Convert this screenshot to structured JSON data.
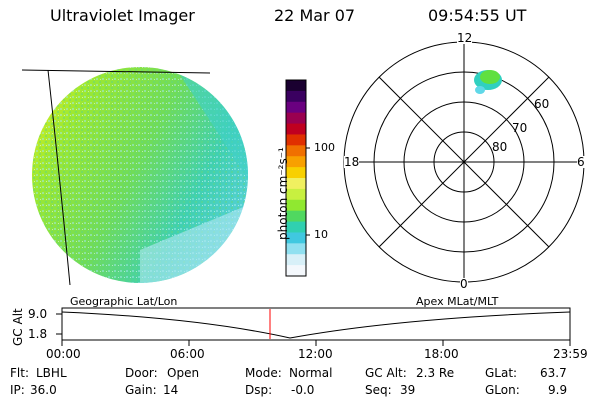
{
  "header": {
    "instrument": "Ultraviolet Imager",
    "date": "22 Mar 07",
    "time": "09:54:55 UT"
  },
  "colorbar": {
    "label": "photon cm⁻²s⁻¹",
    "ticks": [
      "100",
      "10"
    ],
    "colors": [
      "#1a0030",
      "#3a0060",
      "#6a0080",
      "#9a0050",
      "#c00020",
      "#e03000",
      "#f07000",
      "#f8a000",
      "#f8d000",
      "#f0f060",
      "#c8f040",
      "#90e830",
      "#50d860",
      "#30d0b0",
      "#40c8e0",
      "#90e0f0",
      "#d8f0f8",
      "#f4f8fc"
    ]
  },
  "polar_plot": {
    "mlt_labels": {
      "top": "12",
      "left": "18",
      "right": "6",
      "bottom": "0"
    },
    "lat_labels": [
      "60",
      "70",
      "80"
    ]
  },
  "timeline": {
    "y_label": "GC Alt",
    "y_ticks": [
      "9.0",
      "1.8"
    ],
    "left_caption": "Geographic Lat/Lon",
    "right_caption": "Apex MLat/MLT",
    "x_ticks": [
      "00:00",
      "06:00",
      "12:00",
      "18:00",
      "23:59"
    ],
    "marker_color": "#ff0000"
  },
  "info": {
    "row1": [
      {
        "label": "Flt:",
        "value": "LBHL"
      },
      {
        "label": "Door:",
        "value": "Open"
      },
      {
        "label": "Mode:",
        "value": "Normal"
      },
      {
        "label": "GC Alt:",
        "value": "2.3 Re"
      },
      {
        "label": "GLat:",
        "value": "63.7"
      }
    ],
    "row2": [
      {
        "label": "IP:",
        "value": "36.0"
      },
      {
        "label": "Gain:",
        "value": "14"
      },
      {
        "label": "Dsp:",
        "value": "-0.0"
      },
      {
        "label": "Seq:",
        "value": "39"
      },
      {
        "label": "GLon:",
        "value": "9.9"
      }
    ]
  }
}
